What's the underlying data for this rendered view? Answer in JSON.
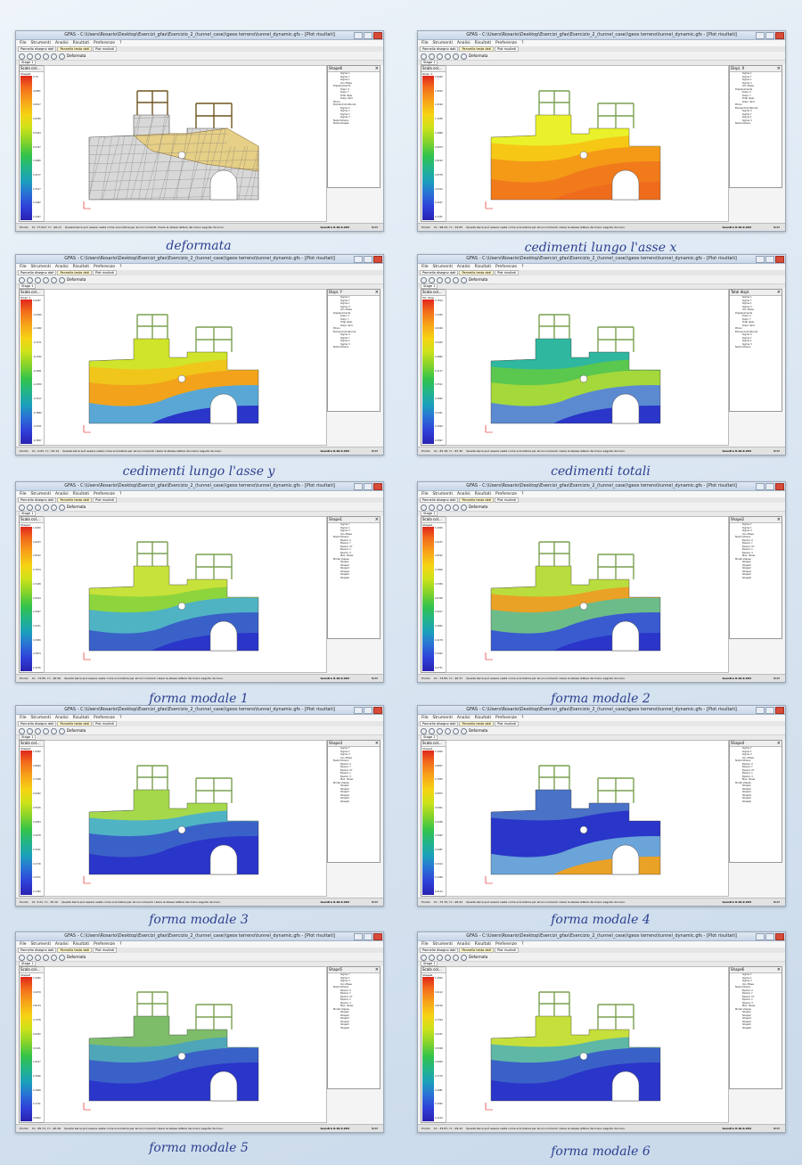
{
  "window": {
    "title": "GFAS - C:\\Users\\Rosario\\Desktop\\Esercizi_gfas\\Esercizio_2_(tunnel_case)\\geos terreno\\tunnel_dynamic.gfs - [Plot risultati]",
    "menu": [
      "File",
      "Strumenti",
      "Analisi",
      "Risultati",
      "Preferenze",
      "?"
    ],
    "tabs": [
      "Pannello disegno dati",
      "Pannello testo dati",
      "Plot risultati"
    ],
    "toolbar_label": "Deformata",
    "stage_tab": "Stage 1",
    "legend_title": "Scala col...",
    "status_left": "Pronto",
    "status_hint": "Questa barra può essere usata come scorciatoia per alcuni comandi. Usare le stesse lettere dei menu seguite da invio.",
    "version": "Geostru 8.10.0.264",
    "status_right": "NUM"
  },
  "colors": {
    "caption": "#2b3f8f",
    "low": "#2a35c9",
    "mid": "#8ed43c",
    "high": "#f26b1c"
  },
  "panels": [
    {
      "caption": "deformata",
      "plot_label": "Shape6",
      "legend_sub": "Shape6",
      "coords": "Xc: 77.547, Yc: -46.12",
      "values": [
        "0.70",
        "0.6851",
        "0.6617",
        "0.6036",
        "0.5424",
        "0.5337",
        "0.4660",
        "0.4137",
        "0.3517",
        "0.2962",
        "0.1947"
      ],
      "tree": [
        "Sigma 1",
        "Sigma Y",
        "Sigma 1",
        "Von Mises",
        "Displacements",
        "Displ. X",
        "Displ. Y",
        "Total displ.",
        "Displ. Vect.",
        "Plinns",
        "Elementi strutturali",
        "Sigma X",
        "Sigma Y",
        "Sigma 1",
        "Sigma 3",
        "Nodal Strains",
        "Nodal shapes"
      ]
    },
    {
      "caption": "cedimenti lungo l'asse x",
      "plot_label": "Displ. X",
      "legend_sub": "Displ. X",
      "coords": "Xc: -98.22, Yc: -33.05",
      "values": [
        "2.0000",
        "1.8543",
        "1.6199",
        "1.3456",
        "1.0868",
        "0.9874",
        "0.8102",
        "0.6578",
        "0.5012",
        "0.4027",
        "0.2431"
      ],
      "tree": [
        "Sigma 1",
        "Sigma Y",
        "Sigma 1",
        "Sigma 3",
        "Von Mises",
        "Displacements",
        "Displ. X",
        "Displ. Y",
        "Total displ.",
        "Displ. Vect.",
        "Plinns",
        "Elementi strutturali",
        "Sigma X",
        "Sigma Y",
        "Sigma 1",
        "Sigma 3",
        "Nodal Strains"
      ]
    },
    {
      "caption": "cedimenti lungo l'asse y",
      "plot_label": "Displ. Y",
      "legend_sub": "Displ. Y",
      "coords": "Xc: -0.05, Yc: -52.14",
      "values": [
        "0.0287",
        "-0.0369",
        "-0.1092",
        "-0.1571",
        "-0.2042",
        "-0.2481",
        "-0.2950",
        "-0.3417",
        "-0.3889",
        "-0.4351",
        "-0.4827"
      ],
      "tree": [
        "Sigma 1",
        "Sigma Y",
        "Sigma 1",
        "Sigma 3",
        "Von Mises",
        "Displacements",
        "Displ. X",
        "Displ. Y",
        "Total displ.",
        "Displ. Vect.",
        "Plinns",
        "Elementi strutturali",
        "Sigma X",
        "Sigma Y",
        "Sigma 1",
        "Sigma 3",
        "Nodal Strains"
      ]
    },
    {
      "caption": "cedimenti totali",
      "plot_label": "Total displ.",
      "legend_sub": "Tot. Disp.",
      "coords": "Xc: -81.18, Yc: -87.30",
      "values": [
        "0.7814",
        "0.7250",
        "0.6426",
        "0.5943",
        "0.4862",
        "0.4137",
        "0.3511",
        "0.2893",
        "0.2301",
        "0.1694",
        "0.0897"
      ],
      "tree": [
        "Sigma 1",
        "Sigma Y",
        "Sigma 1",
        "Sigma 3",
        "Von Mises",
        "Displacements",
        "Displ. X",
        "Displ. Y",
        "Total displ.",
        "Displ. Vect.",
        "Plinns",
        "Elementi strutturali",
        "Sigma X",
        "Sigma Y",
        "Sigma 1",
        "Sigma 3",
        "Nodal Strains"
      ]
    },
    {
      "caption": "forma modale 1",
      "plot_label": "Shape1",
      "legend_sub": "Shape1",
      "coords": "Xc: -72.65, Yc: -46.56",
      "values": [
        "1.0000",
        "0.9253",
        "0.8512",
        "0.7874",
        "0.7248",
        "0.6534",
        "0.5907",
        "0.5211",
        "0.4589",
        "0.3874",
        "0.3156"
      ],
      "tree": [
        "Sigma Y",
        "Sigma 1",
        "Sigma 3",
        "Von Mises",
        "Nodal Strains",
        "Epsilon X",
        "Epsilon Y",
        "Epsilon XY",
        "Epsilon 1",
        "Epsilon 3",
        "Max. Shear",
        "Modal shapes",
        "Shape1",
        "Shape2",
        "Shape3",
        "Shape4",
        "Shape5",
        "Shape6"
      ]
    },
    {
      "caption": "forma modale 2",
      "plot_label": "Shape2",
      "legend_sub": "Shape2",
      "coords": "Xc: -73.65, Yc: -40.37",
      "values": [
        "1.0000",
        "0.9237",
        "0.8522",
        "0.7806",
        "0.7059",
        "0.6336",
        "0.5617",
        "0.4893",
        "0.4178",
        "0.3452",
        "0.2731"
      ],
      "tree": [
        "Sigma Y",
        "Sigma 1",
        "Sigma 3",
        "Von Mises",
        "Nodal Strains",
        "Epsilon X",
        "Epsilon Y",
        "Epsilon XY",
        "Epsilon 1",
        "Epsilon 3",
        "Max. Shear",
        "Modal shapes",
        "Shape1",
        "Shape2",
        "Shape3",
        "Shape4",
        "Shape5",
        "Shape6"
      ]
    },
    {
      "caption": "forma modale 3",
      "plot_label": "Shape3",
      "legend_sub": "Shape3",
      "coords": "Xc: 3.21, Yc: -35.10",
      "values": [
        "1.0000",
        "0.8699",
        "0.7448",
        "0.6492",
        "0.5525",
        "0.4834",
        "0.4078",
        "0.3421",
        "0.2716",
        "0.2071",
        "0.1390"
      ],
      "tree": [
        "Sigma Y",
        "Sigma 1",
        "Sigma 3",
        "Von Mises",
        "Nodal Strains",
        "Epsilon X",
        "Epsilon Y",
        "Epsilon XY",
        "Epsilon 1",
        "Epsilon 3",
        "Max. Shear",
        "Modal shapes",
        "Shape1",
        "Shape2",
        "Shape3",
        "Shape4",
        "Shape5",
        "Shape6"
      ]
    },
    {
      "caption": "forma modale 4",
      "plot_label": "Shape4",
      "legend_sub": "Shape4",
      "coords": "Xc: -72.70, Yc: -48.22",
      "values": [
        "1.0000",
        "0.8857",
        "0.7845",
        "0.6872",
        "0.5901",
        "0.4936",
        "0.3962",
        "0.2987",
        "0.2014",
        "0.1069",
        "0.0104"
      ],
      "tree": [
        "Sigma Y",
        "Sigma 1",
        "Sigma 3",
        "Von Mises",
        "Nodal Strains",
        "Epsilon X",
        "Epsilon Y",
        "Epsilon XY",
        "Epsilon 1",
        "Epsilon 3",
        "Max. Shear",
        "Modal shapes",
        "Shape1",
        "Shape2",
        "Shape3",
        "Shape4",
        "Shape5",
        "Shape6"
      ]
    },
    {
      "caption": "forma modale 5",
      "plot_label": "Shape5",
      "legend_sub": "Shape5",
      "coords": "Xc: -85.71, Yc: -40.36",
      "values": [
        "1.0000",
        "0.9079",
        "0.8134",
        "0.7278",
        "0.6352",
        "0.5431",
        "0.4517",
        "0.3596",
        "0.2668",
        "0.1741",
        "0.0822"
      ],
      "tree": [
        "Sigma Y",
        "Sigma 1",
        "Sigma 3",
        "Von Mises",
        "Nodal Strains",
        "Epsilon X",
        "Epsilon Y",
        "Epsilon XY",
        "Epsilon 1",
        "Epsilon 3",
        "Max. Shear",
        "Modal shapes",
        "Shape1",
        "Shape2",
        "Shape3",
        "Shape4",
        "Shape5",
        "Shape6"
      ]
    },
    {
      "caption": "forma modale 6",
      "plot_label": "Shape6",
      "legend_sub": "Shape6",
      "coords": "Xc: -33.87, Yc: -49.22",
      "values": [
        "1.0000",
        "0.9112",
        "0.8216",
        "0.7324",
        "0.6437",
        "0.5548",
        "0.4659",
        "0.3770",
        "0.2881",
        "0.1993",
        "0.1104"
      ],
      "tree": [
        "Sigma Y",
        "Sigma 1",
        "Sigma 3",
        "Von Mises",
        "Nodal Strains",
        "Epsilon X",
        "Epsilon Y",
        "Epsilon XY",
        "Epsilon 1",
        "Epsilon 3",
        "Max. Shear",
        "Modal shapes",
        "Shape1",
        "Shape2",
        "Shape3",
        "Shape4",
        "Shape5",
        "Shape6"
      ]
    }
  ]
}
